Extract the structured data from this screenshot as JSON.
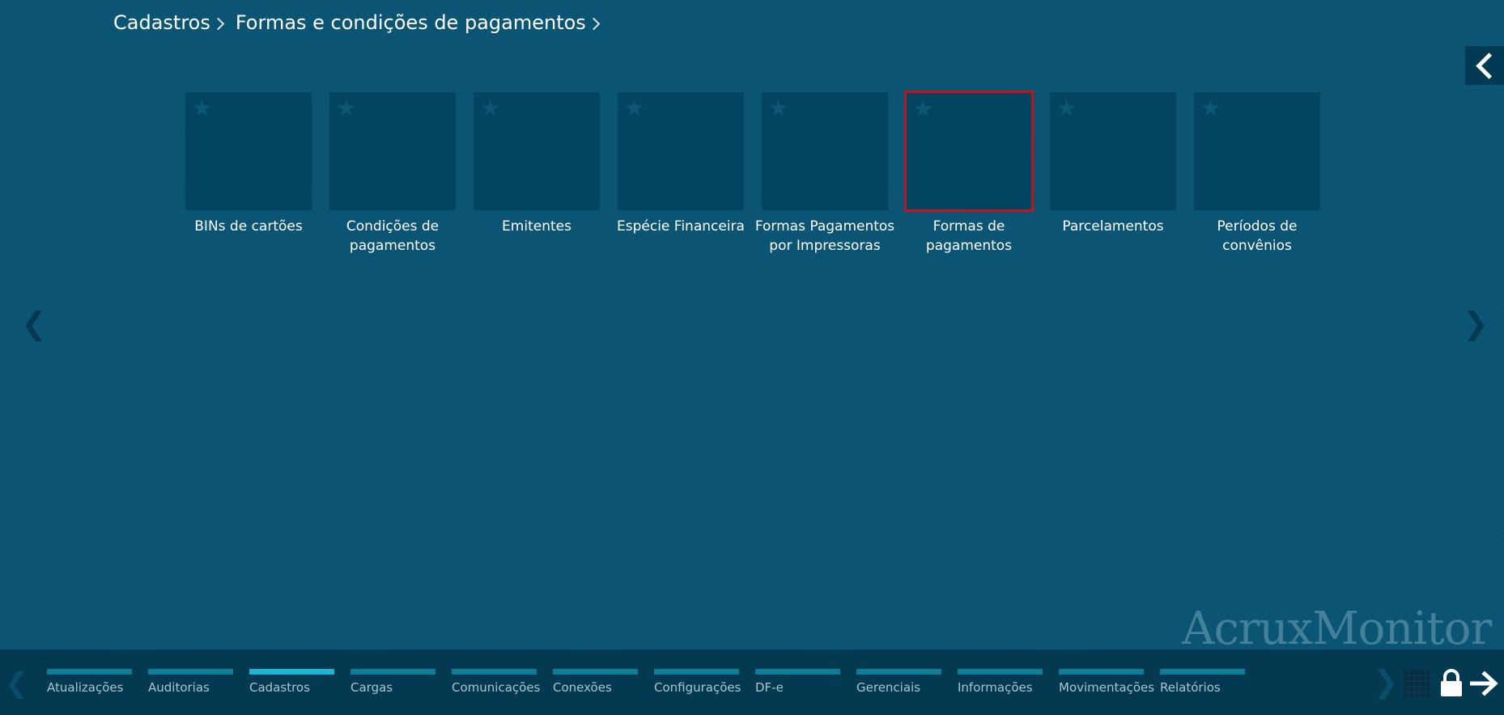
{
  "breadcrumb": {
    "items": [
      "Cadastros",
      "Formas e condições de pagamentos"
    ]
  },
  "collapse_button": {
    "icon": "chevron-left-icon"
  },
  "tiles": [
    {
      "label": "BINs de cartões",
      "selected": false
    },
    {
      "label": "Condições de pagamentos",
      "selected": false
    },
    {
      "label": "Emitentes",
      "selected": false
    },
    {
      "label": "Espécie Financeira",
      "selected": false
    },
    {
      "label": "Formas Pagamentos por Impressoras",
      "selected": false
    },
    {
      "label": "Formas de pagamentos",
      "selected": true
    },
    {
      "label": "Parcelamentos",
      "selected": false
    },
    {
      "label": "Períodos de convênios",
      "selected": false
    }
  ],
  "tile_star_glyph": "★",
  "page_nav": {
    "prev": "❮",
    "next": "❯"
  },
  "watermark": "AcruxMonitor",
  "bottom_nav": {
    "prev": "❮",
    "next": "❯",
    "items": [
      {
        "label": "Atualizações",
        "active": false
      },
      {
        "label": "Auditorias",
        "active": false
      },
      {
        "label": "Cadastros",
        "active": true
      },
      {
        "label": "Cargas",
        "active": false
      },
      {
        "label": "Comunicações",
        "active": false
      },
      {
        "label": "Conexões",
        "active": false
      },
      {
        "label": "Configurações",
        "active": false
      },
      {
        "label": "DF-e",
        "active": false
      },
      {
        "label": "Gerenciais",
        "active": false
      },
      {
        "label": "Informações",
        "active": false
      },
      {
        "label": "Movimentações",
        "active": false
      },
      {
        "label": "Relatórios",
        "active": false
      }
    ]
  },
  "toolbar_icons": [
    "grid-icon",
    "lock-icon",
    "logout-arrow-icon"
  ],
  "colors": {
    "background": "#0a5474",
    "tile": "#034560",
    "selected_border": "#c0141e",
    "bottom_bar": "#033a52",
    "nav_indicator": "#0c7c98",
    "nav_indicator_active": "#1eb4d6"
  }
}
